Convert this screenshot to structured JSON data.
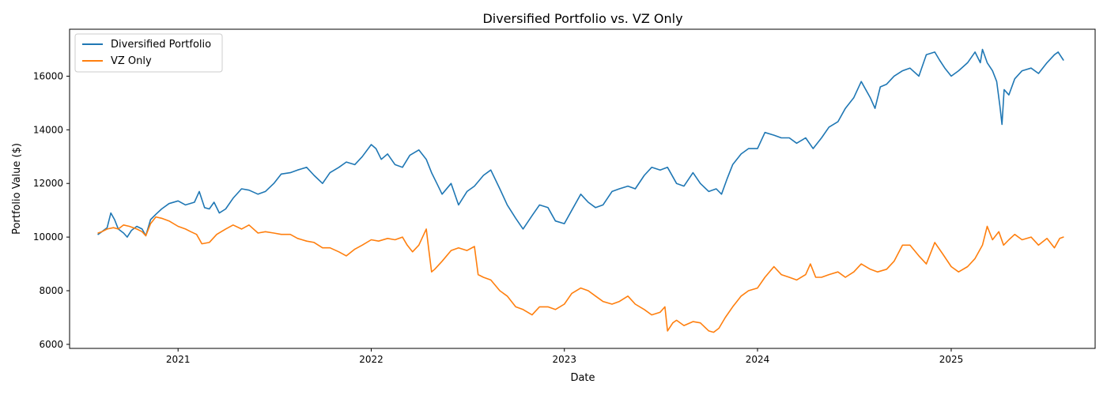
{
  "chart_data": {
    "type": "line",
    "title": "Diversified Portfolio vs. VZ Only",
    "xlabel": "Date",
    "ylabel": "Portfolio Value ($)",
    "x_range": [
      "2020-06-10",
      "2025-09-30"
    ],
    "ylim": [
      5850,
      17750
    ],
    "x_ticks": [
      "2021",
      "2022",
      "2023",
      "2024",
      "2025"
    ],
    "y_ticks": [
      6000,
      8000,
      10000,
      12000,
      14000,
      16000
    ],
    "grid": false,
    "legend": "top-left",
    "series": [
      {
        "name": "Diversified Portfolio",
        "color": "#1f77b4",
        "points": [
          [
            "2020-08-03",
            10100
          ],
          [
            "2020-08-10",
            10200
          ],
          [
            "2020-08-20",
            10350
          ],
          [
            "2020-08-27",
            10900
          ],
          [
            "2020-09-03",
            10650
          ],
          [
            "2020-09-10",
            10300
          ],
          [
            "2020-09-20",
            10150
          ],
          [
            "2020-09-27",
            10000
          ],
          [
            "2020-10-05",
            10250
          ],
          [
            "2020-10-15",
            10400
          ],
          [
            "2020-10-25",
            10300
          ],
          [
            "2020-11-01",
            10050
          ],
          [
            "2020-11-10",
            10650
          ],
          [
            "2020-11-20",
            10850
          ],
          [
            "2020-12-01",
            11050
          ],
          [
            "2020-12-15",
            11250
          ],
          [
            "2021-01-01",
            11350
          ],
          [
            "2021-01-15",
            11200
          ],
          [
            "2021-02-01",
            11300
          ],
          [
            "2021-02-10",
            11700
          ],
          [
            "2021-02-20",
            11100
          ],
          [
            "2021-03-01",
            11050
          ],
          [
            "2021-03-10",
            11300
          ],
          [
            "2021-03-20",
            10900
          ],
          [
            "2021-04-01",
            11050
          ],
          [
            "2021-04-15",
            11450
          ],
          [
            "2021-05-01",
            11800
          ],
          [
            "2021-05-15",
            11750
          ],
          [
            "2021-06-01",
            11600
          ],
          [
            "2021-06-15",
            11700
          ],
          [
            "2021-07-01",
            12000
          ],
          [
            "2021-07-15",
            12350
          ],
          [
            "2021-08-01",
            12400
          ],
          [
            "2021-08-15",
            12500
          ],
          [
            "2021-09-01",
            12600
          ],
          [
            "2021-09-15",
            12300
          ],
          [
            "2021-10-01",
            12000
          ],
          [
            "2021-10-15",
            12400
          ],
          [
            "2021-11-01",
            12600
          ],
          [
            "2021-11-15",
            12800
          ],
          [
            "2021-12-01",
            12700
          ],
          [
            "2021-12-15",
            13000
          ],
          [
            "2022-01-01",
            13450
          ],
          [
            "2022-01-10",
            13300
          ],
          [
            "2022-01-20",
            12900
          ],
          [
            "2022-02-01",
            13100
          ],
          [
            "2022-02-15",
            12700
          ],
          [
            "2022-03-01",
            12600
          ],
          [
            "2022-03-15",
            13050
          ],
          [
            "2022-04-01",
            13250
          ],
          [
            "2022-04-15",
            12900
          ],
          [
            "2022-04-25",
            12400
          ],
          [
            "2022-05-05",
            12000
          ],
          [
            "2022-05-15",
            11600
          ],
          [
            "2022-06-01",
            12000
          ],
          [
            "2022-06-15",
            11200
          ],
          [
            "2022-07-01",
            11700
          ],
          [
            "2022-07-15",
            11900
          ],
          [
            "2022-08-01",
            12300
          ],
          [
            "2022-08-15",
            12500
          ],
          [
            "2022-09-01",
            11800
          ],
          [
            "2022-09-15",
            11200
          ],
          [
            "2022-10-01",
            10700
          ],
          [
            "2022-10-15",
            10300
          ],
          [
            "2022-11-01",
            10800
          ],
          [
            "2022-11-15",
            11200
          ],
          [
            "2022-12-01",
            11100
          ],
          [
            "2022-12-15",
            10600
          ],
          [
            "2023-01-01",
            10500
          ],
          [
            "2023-01-15",
            11000
          ],
          [
            "2023-02-01",
            11600
          ],
          [
            "2023-02-15",
            11300
          ],
          [
            "2023-03-01",
            11100
          ],
          [
            "2023-03-15",
            11200
          ],
          [
            "2023-04-01",
            11700
          ],
          [
            "2023-04-15",
            11800
          ],
          [
            "2023-05-01",
            11900
          ],
          [
            "2023-05-15",
            11800
          ],
          [
            "2023-06-01",
            12300
          ],
          [
            "2023-06-15",
            12600
          ],
          [
            "2023-07-01",
            12500
          ],
          [
            "2023-07-15",
            12600
          ],
          [
            "2023-08-01",
            12000
          ],
          [
            "2023-08-15",
            11900
          ],
          [
            "2023-09-01",
            12400
          ],
          [
            "2023-09-15",
            12000
          ],
          [
            "2023-10-01",
            11700
          ],
          [
            "2023-10-15",
            11800
          ],
          [
            "2023-10-25",
            11600
          ],
          [
            "2023-11-05",
            12200
          ],
          [
            "2023-11-15",
            12700
          ],
          [
            "2023-12-01",
            13100
          ],
          [
            "2023-12-15",
            13300
          ],
          [
            "2024-01-01",
            13300
          ],
          [
            "2024-01-15",
            13900
          ],
          [
            "2024-02-01",
            13800
          ],
          [
            "2024-02-15",
            13700
          ],
          [
            "2024-03-01",
            13700
          ],
          [
            "2024-03-15",
            13500
          ],
          [
            "2024-04-01",
            13700
          ],
          [
            "2024-04-15",
            13300
          ],
          [
            "2024-05-01",
            13700
          ],
          [
            "2024-05-15",
            14100
          ],
          [
            "2024-06-01",
            14300
          ],
          [
            "2024-06-15",
            14800
          ],
          [
            "2024-07-01",
            15200
          ],
          [
            "2024-07-15",
            15800
          ],
          [
            "2024-08-01",
            15200
          ],
          [
            "2024-08-10",
            14800
          ],
          [
            "2024-08-20",
            15600
          ],
          [
            "2024-09-01",
            15700
          ],
          [
            "2024-09-15",
            16000
          ],
          [
            "2024-10-01",
            16200
          ],
          [
            "2024-10-15",
            16300
          ],
          [
            "2024-11-01",
            16000
          ],
          [
            "2024-11-15",
            16800
          ],
          [
            "2024-12-01",
            16900
          ],
          [
            "2024-12-10",
            16600
          ],
          [
            "2024-12-20",
            16300
          ],
          [
            "2025-01-01",
            16000
          ],
          [
            "2025-01-15",
            16200
          ],
          [
            "2025-02-01",
            16500
          ],
          [
            "2025-02-15",
            16900
          ],
          [
            "2025-02-25",
            16500
          ],
          [
            "2025-03-01",
            17000
          ],
          [
            "2025-03-10",
            16500
          ],
          [
            "2025-03-20",
            16200
          ],
          [
            "2025-03-28",
            15800
          ],
          [
            "2025-04-03",
            14900
          ],
          [
            "2025-04-07",
            14200
          ],
          [
            "2025-04-11",
            15500
          ],
          [
            "2025-04-20",
            15300
          ],
          [
            "2025-05-01",
            15900
          ],
          [
            "2025-05-15",
            16200
          ],
          [
            "2025-06-01",
            16300
          ],
          [
            "2025-06-15",
            16100
          ],
          [
            "2025-07-01",
            16500
          ],
          [
            "2025-07-15",
            16800
          ],
          [
            "2025-07-22",
            16900
          ],
          [
            "2025-08-01",
            16600
          ]
        ]
      },
      {
        "name": "VZ Only",
        "color": "#ff7f0e",
        "points": [
          [
            "2020-08-03",
            10150
          ],
          [
            "2020-08-10",
            10200
          ],
          [
            "2020-08-20",
            10300
          ],
          [
            "2020-09-01",
            10350
          ],
          [
            "2020-09-10",
            10300
          ],
          [
            "2020-09-20",
            10450
          ],
          [
            "2020-10-01",
            10400
          ],
          [
            "2020-10-15",
            10300
          ],
          [
            "2020-10-25",
            10200
          ],
          [
            "2020-11-01",
            10050
          ],
          [
            "2020-11-10",
            10500
          ],
          [
            "2020-11-20",
            10750
          ],
          [
            "2020-12-01",
            10700
          ],
          [
            "2020-12-15",
            10600
          ],
          [
            "2021-01-01",
            10400
          ],
          [
            "2021-01-15",
            10300
          ],
          [
            "2021-01-25",
            10200
          ],
          [
            "2021-02-05",
            10100
          ],
          [
            "2021-02-15",
            9750
          ],
          [
            "2021-03-01",
            9800
          ],
          [
            "2021-03-15",
            10100
          ],
          [
            "2021-04-01",
            10300
          ],
          [
            "2021-04-15",
            10450
          ],
          [
            "2021-05-01",
            10300
          ],
          [
            "2021-05-15",
            10450
          ],
          [
            "2021-06-01",
            10150
          ],
          [
            "2021-06-15",
            10200
          ],
          [
            "2021-07-01",
            10150
          ],
          [
            "2021-07-15",
            10100
          ],
          [
            "2021-08-01",
            10100
          ],
          [
            "2021-08-15",
            9950
          ],
          [
            "2021-09-01",
            9850
          ],
          [
            "2021-09-15",
            9800
          ],
          [
            "2021-10-01",
            9600
          ],
          [
            "2021-10-15",
            9600
          ],
          [
            "2021-11-01",
            9450
          ],
          [
            "2021-11-15",
            9300
          ],
          [
            "2021-12-01",
            9550
          ],
          [
            "2021-12-15",
            9700
          ],
          [
            "2022-01-01",
            9900
          ],
          [
            "2022-01-15",
            9850
          ],
          [
            "2022-02-01",
            9950
          ],
          [
            "2022-02-15",
            9900
          ],
          [
            "2022-03-01",
            10000
          ],
          [
            "2022-03-10",
            9700
          ],
          [
            "2022-03-20",
            9450
          ],
          [
            "2022-04-01",
            9700
          ],
          [
            "2022-04-15",
            10300
          ],
          [
            "2022-04-20",
            9500
          ],
          [
            "2022-04-25",
            8700
          ],
          [
            "2022-05-01",
            8800
          ],
          [
            "2022-05-15",
            9100
          ],
          [
            "2022-06-01",
            9500
          ],
          [
            "2022-06-15",
            9600
          ],
          [
            "2022-07-01",
            9500
          ],
          [
            "2022-07-15",
            9650
          ],
          [
            "2022-07-22",
            8600
          ],
          [
            "2022-08-01",
            8500
          ],
          [
            "2022-08-15",
            8400
          ],
          [
            "2022-09-01",
            8000
          ],
          [
            "2022-09-15",
            7800
          ],
          [
            "2022-10-01",
            7400
          ],
          [
            "2022-10-15",
            7300
          ],
          [
            "2022-11-01",
            7100
          ],
          [
            "2022-11-15",
            7400
          ],
          [
            "2022-12-01",
            7400
          ],
          [
            "2022-12-15",
            7300
          ],
          [
            "2023-01-01",
            7500
          ],
          [
            "2023-01-15",
            7900
          ],
          [
            "2023-02-01",
            8100
          ],
          [
            "2023-02-15",
            8000
          ],
          [
            "2023-03-01",
            7800
          ],
          [
            "2023-03-15",
            7600
          ],
          [
            "2023-04-01",
            7500
          ],
          [
            "2023-04-15",
            7600
          ],
          [
            "2023-05-01",
            7800
          ],
          [
            "2023-05-15",
            7500
          ],
          [
            "2023-06-01",
            7300
          ],
          [
            "2023-06-15",
            7100
          ],
          [
            "2023-07-01",
            7200
          ],
          [
            "2023-07-10",
            7400
          ],
          [
            "2023-07-15",
            6500
          ],
          [
            "2023-07-25",
            6800
          ],
          [
            "2023-08-01",
            6900
          ],
          [
            "2023-08-15",
            6700
          ],
          [
            "2023-09-01",
            6850
          ],
          [
            "2023-09-15",
            6800
          ],
          [
            "2023-10-01",
            6500
          ],
          [
            "2023-10-10",
            6450
          ],
          [
            "2023-10-20",
            6600
          ],
          [
            "2023-11-01",
            7000
          ],
          [
            "2023-11-15",
            7400
          ],
          [
            "2023-12-01",
            7800
          ],
          [
            "2023-12-15",
            8000
          ],
          [
            "2024-01-01",
            8100
          ],
          [
            "2024-01-15",
            8500
          ],
          [
            "2024-02-01",
            8900
          ],
          [
            "2024-02-15",
            8600
          ],
          [
            "2024-03-01",
            8500
          ],
          [
            "2024-03-15",
            8400
          ],
          [
            "2024-04-01",
            8600
          ],
          [
            "2024-04-10",
            9000
          ],
          [
            "2024-04-20",
            8500
          ],
          [
            "2024-05-01",
            8500
          ],
          [
            "2024-05-15",
            8600
          ],
          [
            "2024-06-01",
            8700
          ],
          [
            "2024-06-15",
            8500
          ],
          [
            "2024-07-01",
            8700
          ],
          [
            "2024-07-15",
            9000
          ],
          [
            "2024-08-01",
            8800
          ],
          [
            "2024-08-15",
            8700
          ],
          [
            "2024-09-01",
            8800
          ],
          [
            "2024-09-15",
            9100
          ],
          [
            "2024-10-01",
            9700
          ],
          [
            "2024-10-15",
            9700
          ],
          [
            "2024-11-01",
            9300
          ],
          [
            "2024-11-15",
            9000
          ],
          [
            "2024-12-01",
            9800
          ],
          [
            "2024-12-15",
            9400
          ],
          [
            "2025-01-01",
            8900
          ],
          [
            "2025-01-15",
            8700
          ],
          [
            "2025-02-01",
            8900
          ],
          [
            "2025-02-15",
            9200
          ],
          [
            "2025-03-01",
            9700
          ],
          [
            "2025-03-10",
            10400
          ],
          [
            "2025-03-20",
            9900
          ],
          [
            "2025-04-01",
            10200
          ],
          [
            "2025-04-10",
            9700
          ],
          [
            "2025-04-20",
            9900
          ],
          [
            "2025-05-01",
            10100
          ],
          [
            "2025-05-15",
            9900
          ],
          [
            "2025-06-01",
            10000
          ],
          [
            "2025-06-15",
            9700
          ],
          [
            "2025-07-01",
            9950
          ],
          [
            "2025-07-15",
            9600
          ],
          [
            "2025-07-25",
            9950
          ],
          [
            "2025-08-01",
            10000
          ]
        ]
      }
    ]
  }
}
